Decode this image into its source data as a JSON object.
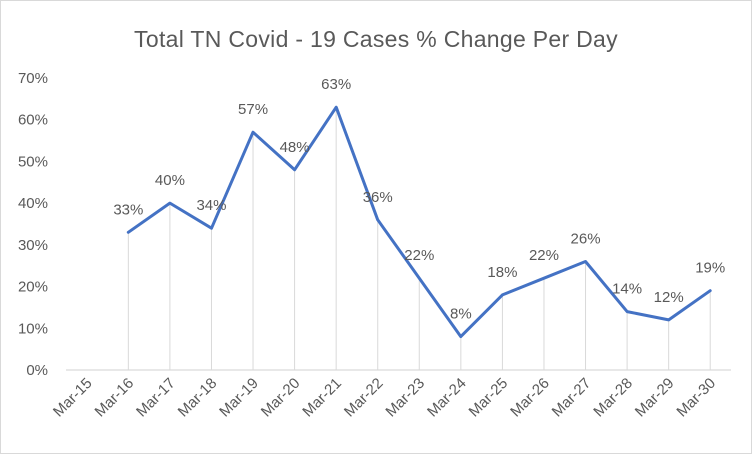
{
  "chart_data": {
    "type": "line",
    "title": "Total TN Covid - 19 Cases % Change Per Day",
    "categories": [
      "Mar-15",
      "Mar-16",
      "Mar-17",
      "Mar-18",
      "Mar-19",
      "Mar-20",
      "Mar-21",
      "Mar-22",
      "Mar-23",
      "Mar-24",
      "Mar-25",
      "Mar-26",
      "Mar-27",
      "Mar-28",
      "Mar-29",
      "Mar-30"
    ],
    "series": [
      {
        "values": [
          null,
          33,
          40,
          34,
          57,
          48,
          63,
          36,
          22,
          8,
          18,
          22,
          26,
          14,
          12,
          19
        ],
        "data_labels": [
          "",
          "33%",
          "40%",
          "34%",
          "57%",
          "48%",
          "63%",
          "36%",
          "22%",
          "8%",
          "18%",
          "22%",
          "26%",
          "14%",
          "12%",
          "19%"
        ],
        "color": "#4472c4"
      }
    ],
    "yticks": [
      "0%",
      "10%",
      "20%",
      "30%",
      "40%",
      "50%",
      "60%",
      "70%"
    ],
    "ylim": [
      0,
      70
    ],
    "xlabel": "",
    "ylabel": "",
    "grid": false,
    "drop_lines": true,
    "legend": "none",
    "colors": {
      "line": "#4472c4",
      "text": "#595959",
      "axis": "#d9d9d9",
      "drop_line": "#d9d9d9"
    }
  }
}
